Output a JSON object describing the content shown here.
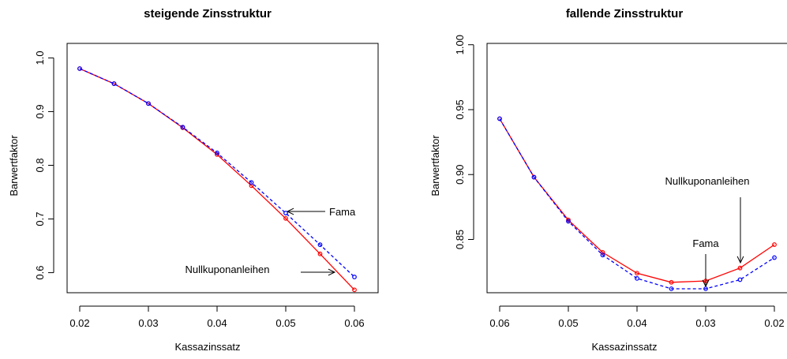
{
  "colors": {
    "nullkupon": "#ff0000",
    "fama": "#0000ff",
    "axis": "#000000"
  },
  "chart_data": [
    {
      "type": "line",
      "title": "steigende Zinsstruktur",
      "xlabel": "Kassazinssatz",
      "ylabel": "Barwertfaktor",
      "xlim": [
        0.02,
        0.06
      ],
      "ylim": [
        0.57,
        0.98
      ],
      "x_reversed": false,
      "x_ticks": [
        0.02,
        0.03,
        0.04,
        0.05,
        0.06
      ],
      "x_tick_labels": [
        "0.02",
        "0.03",
        "0.04",
        "0.05",
        "0.06"
      ],
      "y_ticks": [
        0.6,
        0.7,
        0.8,
        0.9,
        1.0
      ],
      "y_tick_labels": [
        "0.6",
        "0.7",
        "0.8",
        "0.9",
        "1.0"
      ],
      "grid": false,
      "legend": "none",
      "x": [
        0.02,
        0.025,
        0.03,
        0.035,
        0.04,
        0.045,
        0.05,
        0.055,
        0.06
      ],
      "series": [
        {
          "key": "nullkupon",
          "line": "solid",
          "values": [
            0.98,
            0.952,
            0.915,
            0.87,
            0.82,
            0.762,
            0.701,
            0.635,
            0.568
          ]
        },
        {
          "key": "fama",
          "line": "dashed",
          "values": [
            0.98,
            0.952,
            0.915,
            0.871,
            0.823,
            0.768,
            0.711,
            0.652,
            0.592
          ]
        }
      ],
      "annotations": [
        {
          "text": "Fama",
          "target_x": 0.05,
          "target_y": 0.711,
          "direction": "left"
        },
        {
          "text": "Nullkuponanleihen",
          "target_x": 0.06,
          "target_y": 0.6,
          "direction": "right"
        }
      ]
    },
    {
      "type": "line",
      "title": "fallende Zinsstruktur",
      "xlabel": "Kassazinssatz",
      "ylabel": "Barwertfaktor",
      "xlim": [
        0.06,
        0.02
      ],
      "ylim": [
        0.812,
        0.998
      ],
      "x_reversed": true,
      "x_ticks": [
        0.06,
        0.05,
        0.04,
        0.03,
        0.02
      ],
      "x_tick_labels": [
        "0.06",
        "0.05",
        "0.04",
        "0.03",
        "0.02"
      ],
      "y_ticks": [
        0.85,
        0.9,
        0.95,
        1.0
      ],
      "y_tick_labels": [
        "0.85",
        "0.90",
        "0.95",
        "1.00"
      ],
      "grid": false,
      "legend": "none",
      "x": [
        0.06,
        0.055,
        0.05,
        0.045,
        0.04,
        0.035,
        0.03,
        0.025,
        0.02
      ],
      "series": [
        {
          "key": "nullkupon",
          "line": "solid",
          "values": [
            0.943,
            0.898,
            0.865,
            0.84,
            0.824,
            0.817,
            0.818,
            0.828,
            0.846
          ]
        },
        {
          "key": "fama",
          "line": "dashed",
          "values": [
            0.943,
            0.898,
            0.864,
            0.838,
            0.82,
            0.812,
            0.812,
            0.819,
            0.836
          ]
        }
      ],
      "annotations": [
        {
          "text": "Fama",
          "target_x": 0.03,
          "target_y": 0.812,
          "direction": "down"
        },
        {
          "text": "Nullkuponanleihen",
          "target_x": 0.025,
          "target_y": 0.83,
          "direction": "down"
        }
      ]
    }
  ]
}
